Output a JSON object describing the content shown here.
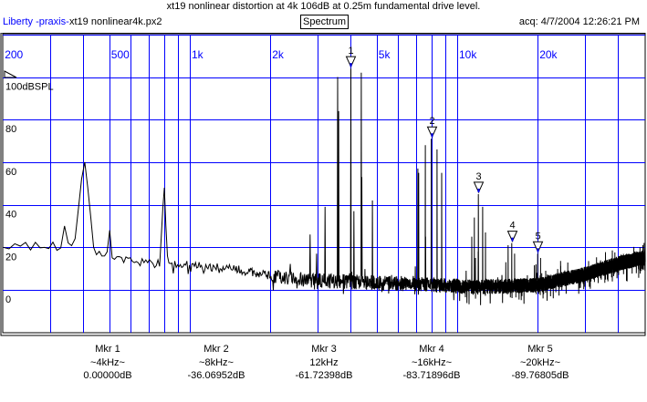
{
  "header": {
    "title": "xt19 nonlinear distortion at 4k 106dB at 0.25m fundamental drive level.",
    "app_name": "Liberty -praxis-",
    "file_name": "xt19 nonlinear4k.px2",
    "mode": "Spectrum",
    "acquired": "acq: 4/7/2004 12:26:21 PM"
  },
  "colors": {
    "grid": "#0000ff",
    "trace": "#000000",
    "frame": "#000000"
  },
  "chart_data": {
    "type": "line",
    "title": "xt19 nonlinear distortion at 4k 106dB at 0.25m fundamental drive level.",
    "xscale": "log",
    "xlim": [
      200,
      50500
    ],
    "ylim": [
      -20,
      120
    ],
    "ylabel": "dBSPL",
    "x_ticks": [
      {
        "f": 200,
        "label": "200"
      },
      {
        "f": 500,
        "label": "500"
      },
      {
        "f": 1000,
        "label": "1k"
      },
      {
        "f": 2000,
        "label": "2k"
      },
      {
        "f": 5000,
        "label": "5k"
      },
      {
        "f": 10000,
        "label": "10k"
      },
      {
        "f": 20000,
        "label": "20k"
      }
    ],
    "x_gridlines": [
      300,
      400,
      500,
      600,
      700,
      800,
      900,
      1000,
      2000,
      3000,
      4000,
      5000,
      6000,
      7000,
      8000,
      9000,
      10000,
      20000,
      30000,
      40000
    ],
    "y_ticks": [
      {
        "v": 100,
        "label": "100dBSPL"
      },
      {
        "v": 80,
        "label": "80"
      },
      {
        "v": 60,
        "label": "60"
      },
      {
        "v": 40,
        "label": "40"
      },
      {
        "v": 20,
        "label": "20"
      },
      {
        "v": 0,
        "label": "0"
      }
    ],
    "y_gridlines": [
      100,
      80,
      60,
      40,
      20,
      0
    ],
    "grid": true,
    "noise_floor": [
      [
        200,
        22
      ],
      [
        300,
        21
      ],
      [
        400,
        20
      ],
      [
        500,
        16
      ],
      [
        700,
        13
      ],
      [
        1000,
        12
      ],
      [
        1500,
        10
      ],
      [
        2000,
        7
      ],
      [
        3000,
        5
      ],
      [
        5000,
        4
      ],
      [
        8000,
        3
      ],
      [
        12000,
        2
      ],
      [
        20000,
        3
      ],
      [
        30000,
        8
      ],
      [
        40000,
        13
      ],
      [
        50500,
        16
      ]
    ],
    "peaks": [
      [
        340,
        30
      ],
      [
        400,
        60
      ],
      [
        410,
        55
      ],
      [
        500,
        28
      ],
      [
        780,
        23
      ],
      [
        800,
        48
      ],
      [
        2820,
        26
      ],
      [
        2980,
        17
      ],
      [
        3200,
        39
      ],
      [
        3570,
        100
      ],
      [
        3600,
        84
      ],
      [
        4000,
        104
      ],
      [
        4110,
        37
      ],
      [
        4380,
        102
      ],
      [
        4400,
        53
      ],
      [
        4820,
        42
      ],
      [
        6970,
        11
      ],
      [
        7130,
        57
      ],
      [
        7180,
        55
      ],
      [
        7600,
        68
      ],
      [
        7620,
        25
      ],
      [
        8000,
        71
      ],
      [
        8410,
        66
      ],
      [
        8750,
        55
      ],
      [
        10800,
        9
      ],
      [
        11340,
        25
      ],
      [
        11600,
        34
      ],
      [
        11700,
        15
      ],
      [
        11980,
        18
      ],
      [
        12000,
        45
      ],
      [
        12460,
        39
      ],
      [
        12760,
        27
      ],
      [
        14700,
        7
      ],
      [
        15200,
        13
      ],
      [
        15500,
        21
      ],
      [
        16000,
        22
      ],
      [
        16400,
        17
      ],
      [
        19700,
        12
      ],
      [
        20000,
        17
      ],
      [
        20500,
        15
      ]
    ],
    "markers": [
      {
        "id": "1",
        "f": 4000,
        "db": 104
      },
      {
        "id": "2",
        "f": 8000,
        "db": 71
      },
      {
        "id": "3",
        "f": 12000,
        "db": 45
      },
      {
        "id": "4",
        "f": 16000,
        "db": 22
      },
      {
        "id": "5",
        "f": 20000,
        "db": 17
      }
    ]
  },
  "marker_readouts": [
    {
      "name": "Mkr 1",
      "freq": "~4kHz~",
      "level": "0.00000dB"
    },
    {
      "name": "Mkr 2",
      "freq": "~8kHz~",
      "level": "-36.06952dB"
    },
    {
      "name": "Mkr 3",
      "freq": "12kHz",
      "level": "-61.72398dB"
    },
    {
      "name": "Mkr 4",
      "freq": "~16kHz~",
      "level": "-83.71896dB"
    },
    {
      "name": "Mkr 5",
      "freq": "~20kHz~",
      "level": "-89.76805dB"
    }
  ]
}
